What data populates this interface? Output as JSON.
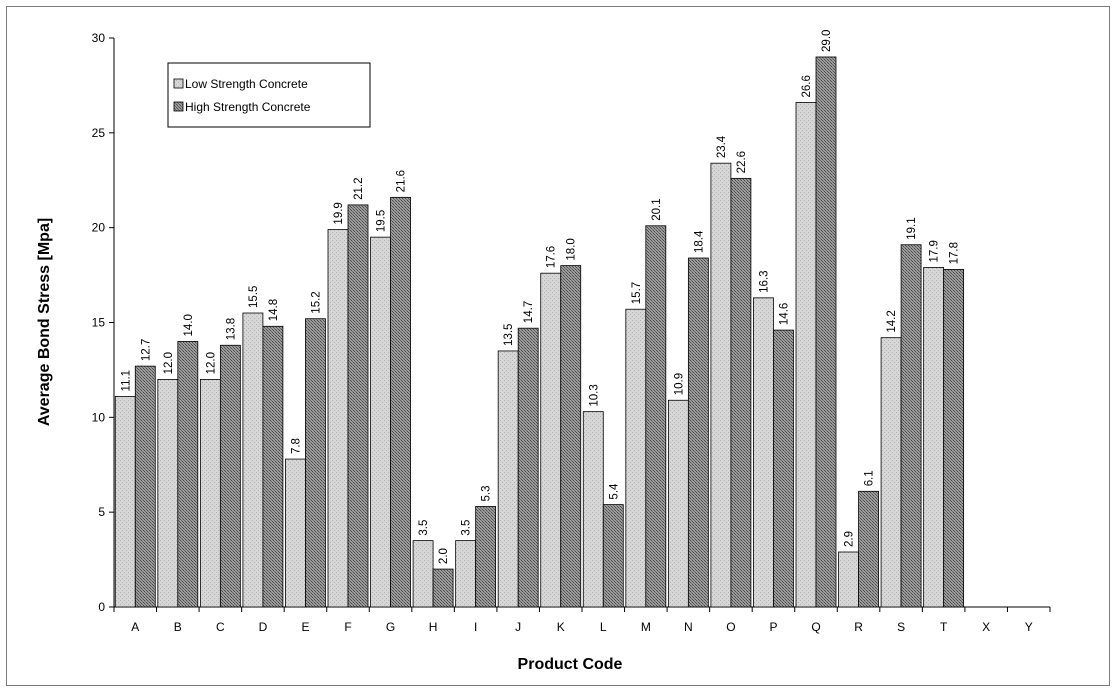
{
  "chart_data": {
    "type": "bar",
    "title": "",
    "xlabel": "Product Code",
    "ylabel": "Average Bond Stress [Mpa]",
    "ylim": [
      0,
      30
    ],
    "yticks": [
      "0",
      "5",
      "10",
      "15",
      "20",
      "25",
      "30"
    ],
    "grid": false,
    "legend_position": "top-left",
    "categories": [
      "A",
      "B",
      "C",
      "D",
      "E",
      "F",
      "G",
      "H",
      "I",
      "J",
      "K",
      "L",
      "M",
      "N",
      "O",
      "P",
      "Q",
      "R",
      "S",
      "T",
      "X",
      "Y"
    ],
    "series": [
      {
        "name": "Low Strength Concrete",
        "color": "#cfcfcf",
        "values": [
          11.1,
          12.0,
          12.0,
          15.5,
          7.8,
          19.9,
          19.5,
          3.5,
          3.5,
          13.5,
          17.6,
          10.3,
          15.7,
          10.9,
          23.4,
          16.3,
          26.6,
          2.9,
          14.2,
          17.9,
          null,
          null
        ],
        "labels": [
          "11.1",
          "12.0",
          "12.0",
          "15.5",
          "7.8",
          "19.9",
          "19.5",
          "3.5",
          "3.5",
          "13.5",
          "17.6",
          "10.3",
          "15.7",
          "10.9",
          "23.4",
          "16.3",
          "26.6",
          "2.9",
          "14.2",
          "17.9",
          "",
          ""
        ]
      },
      {
        "name": "High Strength Concrete",
        "color": "#8a8a8a",
        "values": [
          12.7,
          14.0,
          13.8,
          14.8,
          15.2,
          21.2,
          21.6,
          2.0,
          5.3,
          14.7,
          18.0,
          5.4,
          20.1,
          18.4,
          22.6,
          14.6,
          29.0,
          6.1,
          19.1,
          17.8,
          null,
          null
        ],
        "labels": [
          "12.7",
          "14.0",
          "13.8",
          "14.8",
          "15.2",
          "21.2",
          "21.6",
          "2.0",
          "5.3",
          "14.7",
          "18.0",
          "5.4",
          "20.1",
          "18.4",
          "22.6",
          "14.6",
          "29.0",
          "6.1",
          "19.1",
          "17.8",
          "",
          ""
        ]
      }
    ]
  }
}
